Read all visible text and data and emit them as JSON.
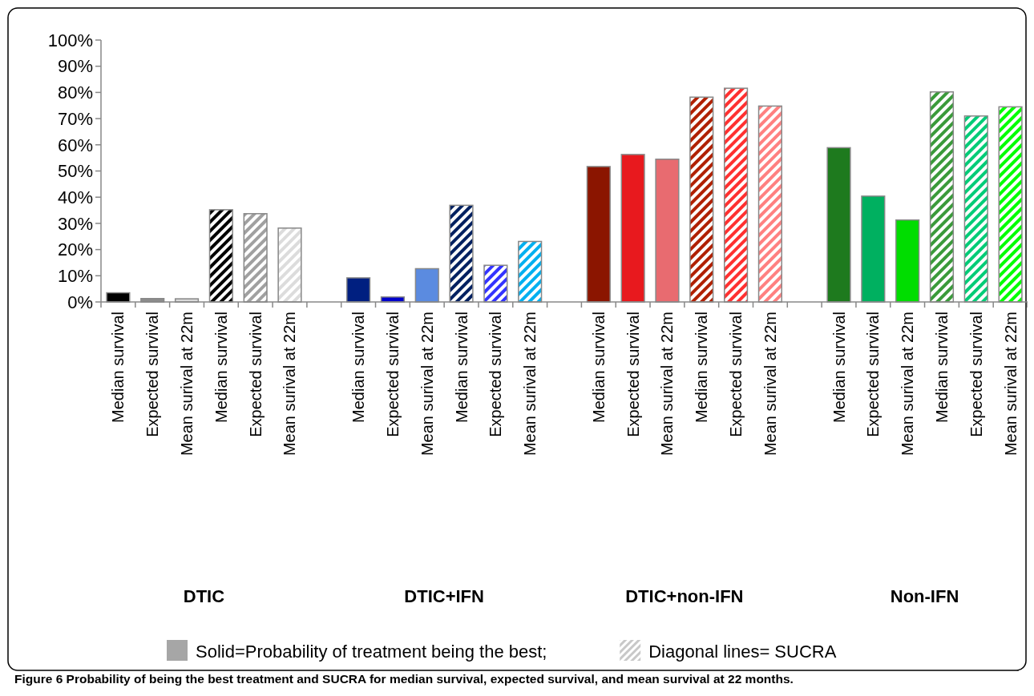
{
  "chart_data": {
    "type": "bar",
    "categories": [
      "Median survival",
      "Expected survival",
      "Mean surival at 22m",
      "Median survival",
      "Expected survival",
      "Mean surival at 22m",
      null,
      "Median survival",
      "Expected survival",
      "Mean surival at 22m",
      "Median survival",
      "Expected survival",
      "Mean surival at 22m",
      null,
      "Median survival",
      "Expected survival",
      "Mean surival at 22m",
      "Median survival",
      "Expected survival",
      "Mean surival at 22m",
      null,
      "Median survival",
      "Expected survival",
      "Mean surival at 22m",
      "Median survival",
      "Expected survival",
      "Mean surival at 22m"
    ],
    "series": [
      {
        "values": [
          3.5,
          1.3,
          1.2,
          null,
          null,
          null,
          null,
          9.2,
          1.9,
          12.7,
          null,
          null,
          null,
          null,
          51.7,
          56.3,
          54.5,
          null,
          null,
          null,
          null,
          58.9,
          40.4,
          31.3,
          null,
          null,
          null
        ],
        "colors": [
          "#000000",
          "#8c8c8c",
          "#d9d9d9",
          null,
          null,
          null,
          null,
          "#001f80",
          "#0000cc",
          "#5b8be0",
          null,
          null,
          null,
          null,
          "#8b1500",
          "#e8191e",
          "#e86b70",
          null,
          null,
          null,
          null,
          "#1e7a1e",
          "#00b060",
          "#00dd00",
          null,
          null,
          null
        ]
      },
      {
        "values": [
          null,
          null,
          null,
          35.2,
          33.7,
          28.2,
          null,
          null,
          null,
          null,
          36.9,
          14.0,
          23.1,
          null,
          null,
          null,
          null,
          78.2,
          81.6,
          74.8,
          null,
          null,
          null,
          null,
          80.2,
          71.0,
          74.5
        ],
        "colors": [
          null,
          null,
          null,
          "#000000",
          "#a0a0a0",
          "#dcdcdc",
          null,
          null,
          null,
          null,
          "#002060",
          "#3333ff",
          "#00b0f0",
          null,
          null,
          null,
          null,
          "#b02000",
          "#ff3030",
          "#ff8080",
          null,
          null,
          null,
          null,
          "#3a9a3a",
          "#00cc77",
          "#00ff00"
        ]
      }
    ],
    "ylim": [
      0,
      100
    ],
    "yticks": [
      {
        "value": 0,
        "label": "0%"
      },
      {
        "value": 10,
        "label": "10%"
      },
      {
        "value": 20,
        "label": "20%"
      },
      {
        "value": 30,
        "label": "30%"
      },
      {
        "value": 40,
        "label": "40%"
      },
      {
        "value": 50,
        "label": "50%"
      },
      {
        "value": 60,
        "label": "60%"
      },
      {
        "value": 70,
        "label": "70%"
      },
      {
        "value": 80,
        "label": "80%"
      },
      {
        "value": 90,
        "label": "90%"
      },
      {
        "value": 100,
        "label": "100%"
      }
    ],
    "grid": false,
    "annotations": [
      "DTIC",
      "DTIC+IFN",
      "DTIC+non-IFN",
      "Non-IFN",
      "Solid=Probability of treatment being the best;",
      "Diagonal lines= SUCRA",
      "Figure 6 Probability of being the best treatment and SUCRA for median survival, expected survival, and mean survival at 22 months."
    ]
  }
}
